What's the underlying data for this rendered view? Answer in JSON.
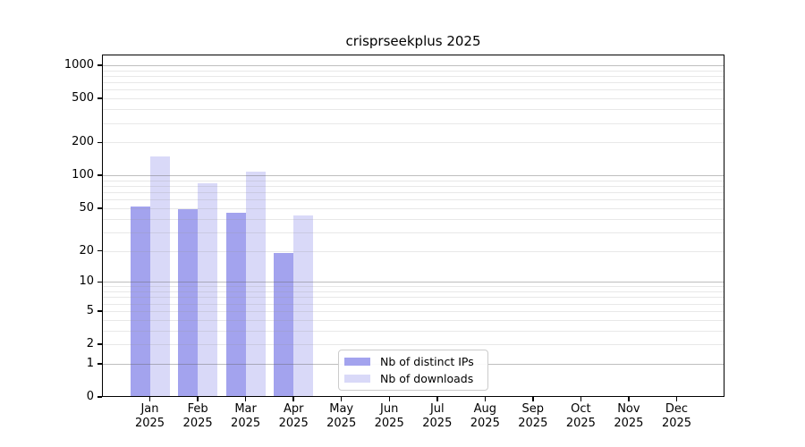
{
  "title": "crisprseekplus 2025",
  "chart_data": {
    "type": "bar",
    "title": "crisprseekplus 2025",
    "year": "2025",
    "months": [
      "Jan",
      "Feb",
      "Mar",
      "Apr",
      "May",
      "Jun",
      "Jul",
      "Aug",
      "Sep",
      "Oct",
      "Nov",
      "Dec"
    ],
    "categories": [
      "Jan 2025",
      "Feb 2025",
      "Mar 2025",
      "Apr 2025",
      "May 2025",
      "Jun 2025",
      "Jul 2025",
      "Aug 2025",
      "Sep 2025",
      "Oct 2025",
      "Nov 2025",
      "Dec 2025"
    ],
    "series": [
      {
        "name": "Nb of distinct IPs",
        "color": "#a3a3ee",
        "values": [
          52,
          49,
          45,
          19,
          null,
          null,
          null,
          null,
          null,
          null,
          null,
          null
        ]
      },
      {
        "name": "Nb of downloads",
        "color": "#d9d9f8",
        "values": [
          150,
          84,
          108,
          43,
          null,
          null,
          null,
          null,
          null,
          null,
          null,
          null
        ]
      }
    ],
    "yticks": [
      0,
      1,
      2,
      5,
      10,
      20,
      50,
      100,
      200,
      500,
      1000
    ],
    "ylim": [
      0,
      1000
    ],
    "yscale": "log1p",
    "xlabel": "",
    "ylabel": "",
    "grid": "horizontal",
    "legend_position": "inside-bottom-left-of-center"
  }
}
